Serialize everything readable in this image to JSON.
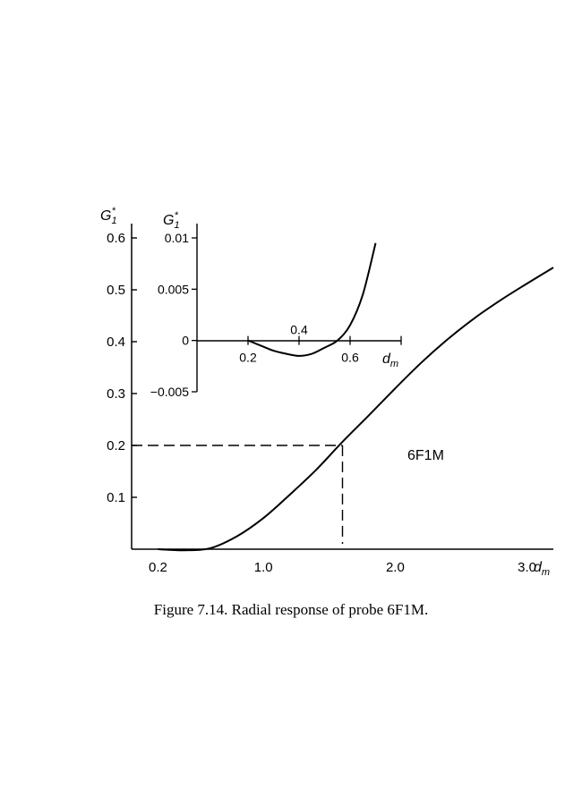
{
  "chart_data": [
    {
      "type": "line",
      "title": "",
      "xlabel": "d_m",
      "ylabel": "G_1*",
      "xlim": [
        0.0,
        3.2
      ],
      "ylim": [
        0.0,
        0.6
      ],
      "x_ticks": [
        0.2,
        1.0,
        2.0,
        3.0
      ],
      "x_tick_labels": [
        "0.2",
        "1.0",
        "2.0",
        "3.0"
      ],
      "y_ticks": [
        0.1,
        0.2,
        0.3,
        0.4,
        0.5,
        0.6
      ],
      "y_tick_labels": [
        "0.1",
        "0.2",
        "0.3",
        "0.4",
        "0.5",
        "0.6"
      ],
      "grid": false,
      "series": [
        {
          "x": [
            0.2,
            0.4,
            0.6,
            0.8,
            1.0,
            1.2,
            1.4,
            1.6,
            1.8,
            2.0,
            2.2,
            2.4,
            2.6,
            2.8,
            3.0,
            3.2
          ],
          "y": [
            0.0,
            -0.002,
            0.002,
            0.025,
            0.06,
            0.105,
            0.153,
            0.207,
            0.258,
            0.31,
            0.36,
            0.405,
            0.445,
            0.48,
            0.512,
            0.543
          ]
        }
      ],
      "reference_point": {
        "x": 1.6,
        "y": 0.2
      },
      "annotation": "6F1M"
    },
    {
      "type": "line",
      "title": "",
      "xlabel": "d_m",
      "ylabel": "G_1*",
      "xlim": [
        0.0,
        0.8
      ],
      "ylim": [
        -0.005,
        0.01
      ],
      "x_ticks": [
        0.2,
        0.4,
        0.6
      ],
      "x_tick_labels": [
        "0.2",
        "0.4",
        "0.6"
      ],
      "y_ticks": [
        -0.005,
        0.0,
        0.005,
        0.01
      ],
      "y_tick_labels": [
        "−0.005",
        "0",
        "0.005",
        "0.01"
      ],
      "grid": false,
      "series": [
        {
          "x": [
            0.2,
            0.25,
            0.3,
            0.35,
            0.4,
            0.45,
            0.5,
            0.55,
            0.6,
            0.65,
            0.7
          ],
          "y": [
            0.0,
            -0.0005,
            -0.001,
            -0.0013,
            -0.0015,
            -0.0013,
            -0.0007,
            0.0,
            0.0015,
            0.0045,
            0.0095
          ]
        }
      ]
    }
  ],
  "labels": {
    "axis_letter": "G",
    "axis_sub": "1",
    "axis_sup": "*",
    "x_axis_letter": "d",
    "x_axis_sub": "m"
  },
  "caption": "Figure 7.14. Radial response of probe 6F1M."
}
